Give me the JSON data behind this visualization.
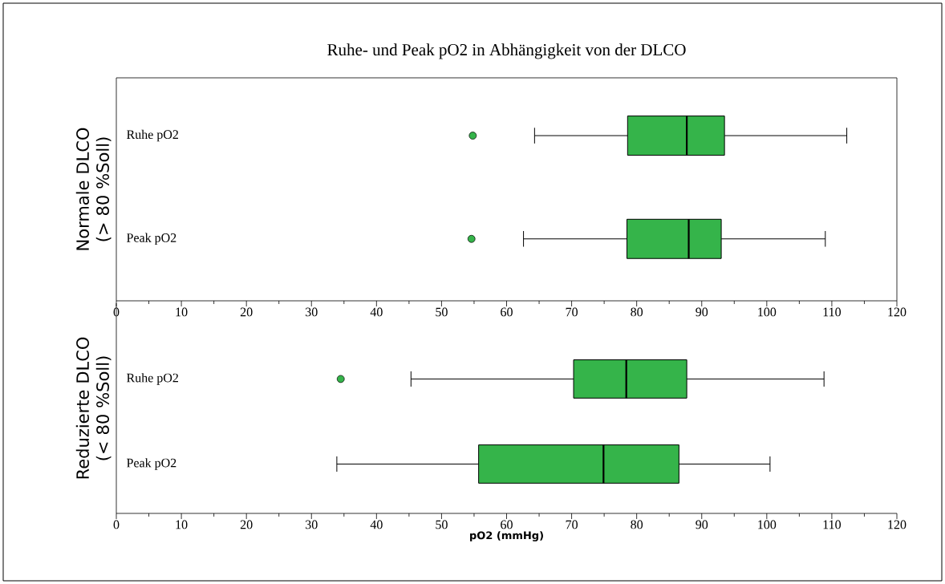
{
  "chart_data": [
    {
      "type": "box",
      "orientation": "horizontal",
      "title": "Ruhe- und Peak pO2 in Abhängigkeit von der DLCO",
      "ylabel": "Normale DLCO (> 80 %Soll)",
      "categories": [
        "Ruhe pO2",
        "Peak pO2"
      ],
      "color": "#35b44a",
      "boxes": [
        {
          "low": 64.3,
          "q1": 78.6,
          "median": 87.7,
          "q3": 93.5,
          "high": 112.3,
          "outliers": [
            54.8
          ]
        },
        {
          "low": 62.6,
          "q1": 78.5,
          "median": 88.0,
          "q3": 93.0,
          "high": 109.0,
          "outliers": [
            54.6
          ]
        }
      ],
      "xlim": [
        0,
        120
      ],
      "xticks": [
        0,
        {
          "value": 5,
          "label": null
        },
        10,
        {
          "value": 15,
          "label": null
        },
        20,
        {
          "value": 25,
          "label": null
        },
        30,
        {
          "value": 35,
          "label": null
        },
        40,
        {
          "value": 45,
          "label": null
        },
        50,
        {
          "value": 55,
          "label": null
        },
        60,
        {
          "value": 65,
          "label": null
        },
        70,
        {
          "value": 75,
          "label": null
        },
        80,
        {
          "value": 85,
          "label": null
        },
        90,
        {
          "value": 95,
          "label": null
        },
        100,
        {
          "value": 105,
          "label": null
        },
        110,
        {
          "value": 115,
          "label": null
        },
        120
      ]
    },
    {
      "type": "box",
      "orientation": "horizontal",
      "ylabel": "Reduzierte DLCO (< 80 %Soll)",
      "xlabel": "pO2 (mmHg)",
      "categories": [
        "Ruhe pO2",
        "Peak pO2"
      ],
      "color": "#35b44a",
      "boxes": [
        {
          "low": 45.3,
          "q1": 70.3,
          "median": 78.4,
          "q3": 87.7,
          "high": 108.8,
          "outliers": [
            34.5
          ]
        },
        {
          "low": 33.9,
          "q1": 55.7,
          "median": 74.9,
          "q3": 86.5,
          "high": 100.5
        }
      ],
      "xlim": [
        0,
        120
      ],
      "xticks": [
        0,
        {
          "value": 5,
          "label": null
        },
        10,
        {
          "value": 15,
          "label": null
        },
        20,
        {
          "value": 25,
          "label": null
        },
        30,
        {
          "value": 35,
          "label": null
        },
        40,
        {
          "value": 45,
          "label": null
        },
        50,
        {
          "value": 55,
          "label": null
        },
        60,
        {
          "value": 65,
          "label": null
        },
        70,
        {
          "value": 75,
          "label": null
        },
        80,
        {
          "value": 85,
          "label": null
        },
        90,
        {
          "value": 95,
          "label": null
        },
        100,
        {
          "value": 105,
          "label": null
        },
        110,
        {
          "value": 115,
          "label": null
        },
        120
      ]
    }
  ]
}
